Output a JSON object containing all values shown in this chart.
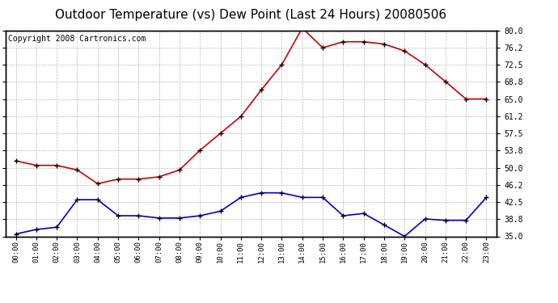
{
  "title": "Outdoor Temperature (vs) Dew Point (Last 24 Hours) 20080506",
  "copyright_text": "Copyright 2008 Cartronics.com",
  "hours": [
    0,
    1,
    2,
    3,
    4,
    5,
    6,
    7,
    8,
    9,
    10,
    11,
    12,
    13,
    14,
    15,
    16,
    17,
    18,
    19,
    20,
    21,
    22,
    23
  ],
  "x_labels": [
    "00:00",
    "01:00",
    "02:00",
    "03:00",
    "04:00",
    "05:00",
    "06:00",
    "07:00",
    "08:00",
    "09:00",
    "10:00",
    "11:00",
    "12:00",
    "13:00",
    "14:00",
    "15:00",
    "16:00",
    "17:00",
    "18:00",
    "19:00",
    "20:00",
    "21:00",
    "22:00",
    "23:00"
  ],
  "temp_data": [
    51.5,
    50.5,
    50.5,
    49.5,
    46.5,
    47.5,
    47.5,
    48.0,
    49.5,
    53.8,
    57.5,
    61.2,
    67.0,
    72.5,
    80.5,
    76.2,
    77.5,
    77.5,
    77.0,
    75.5,
    72.5,
    68.8,
    65.0,
    65.0
  ],
  "dew_data": [
    35.5,
    36.5,
    37.0,
    43.0,
    43.0,
    39.5,
    39.5,
    39.0,
    39.0,
    39.5,
    40.5,
    43.5,
    44.5,
    44.5,
    43.5,
    43.5,
    39.5,
    40.0,
    37.5,
    35.0,
    38.8,
    38.5,
    38.5,
    43.5
  ],
  "ylim": [
    35.0,
    80.0
  ],
  "yticks": [
    35.0,
    38.8,
    42.5,
    46.2,
    50.0,
    53.8,
    57.5,
    61.2,
    65.0,
    68.8,
    72.5,
    76.2,
    80.0
  ],
  "temp_color": "#cc0000",
  "dew_color": "#0000cc",
  "bg_color": "#ffffff",
  "plot_bg_color": "#ffffff",
  "grid_color": "#bbbbbb",
  "title_fontsize": 11,
  "copyright_fontsize": 7
}
